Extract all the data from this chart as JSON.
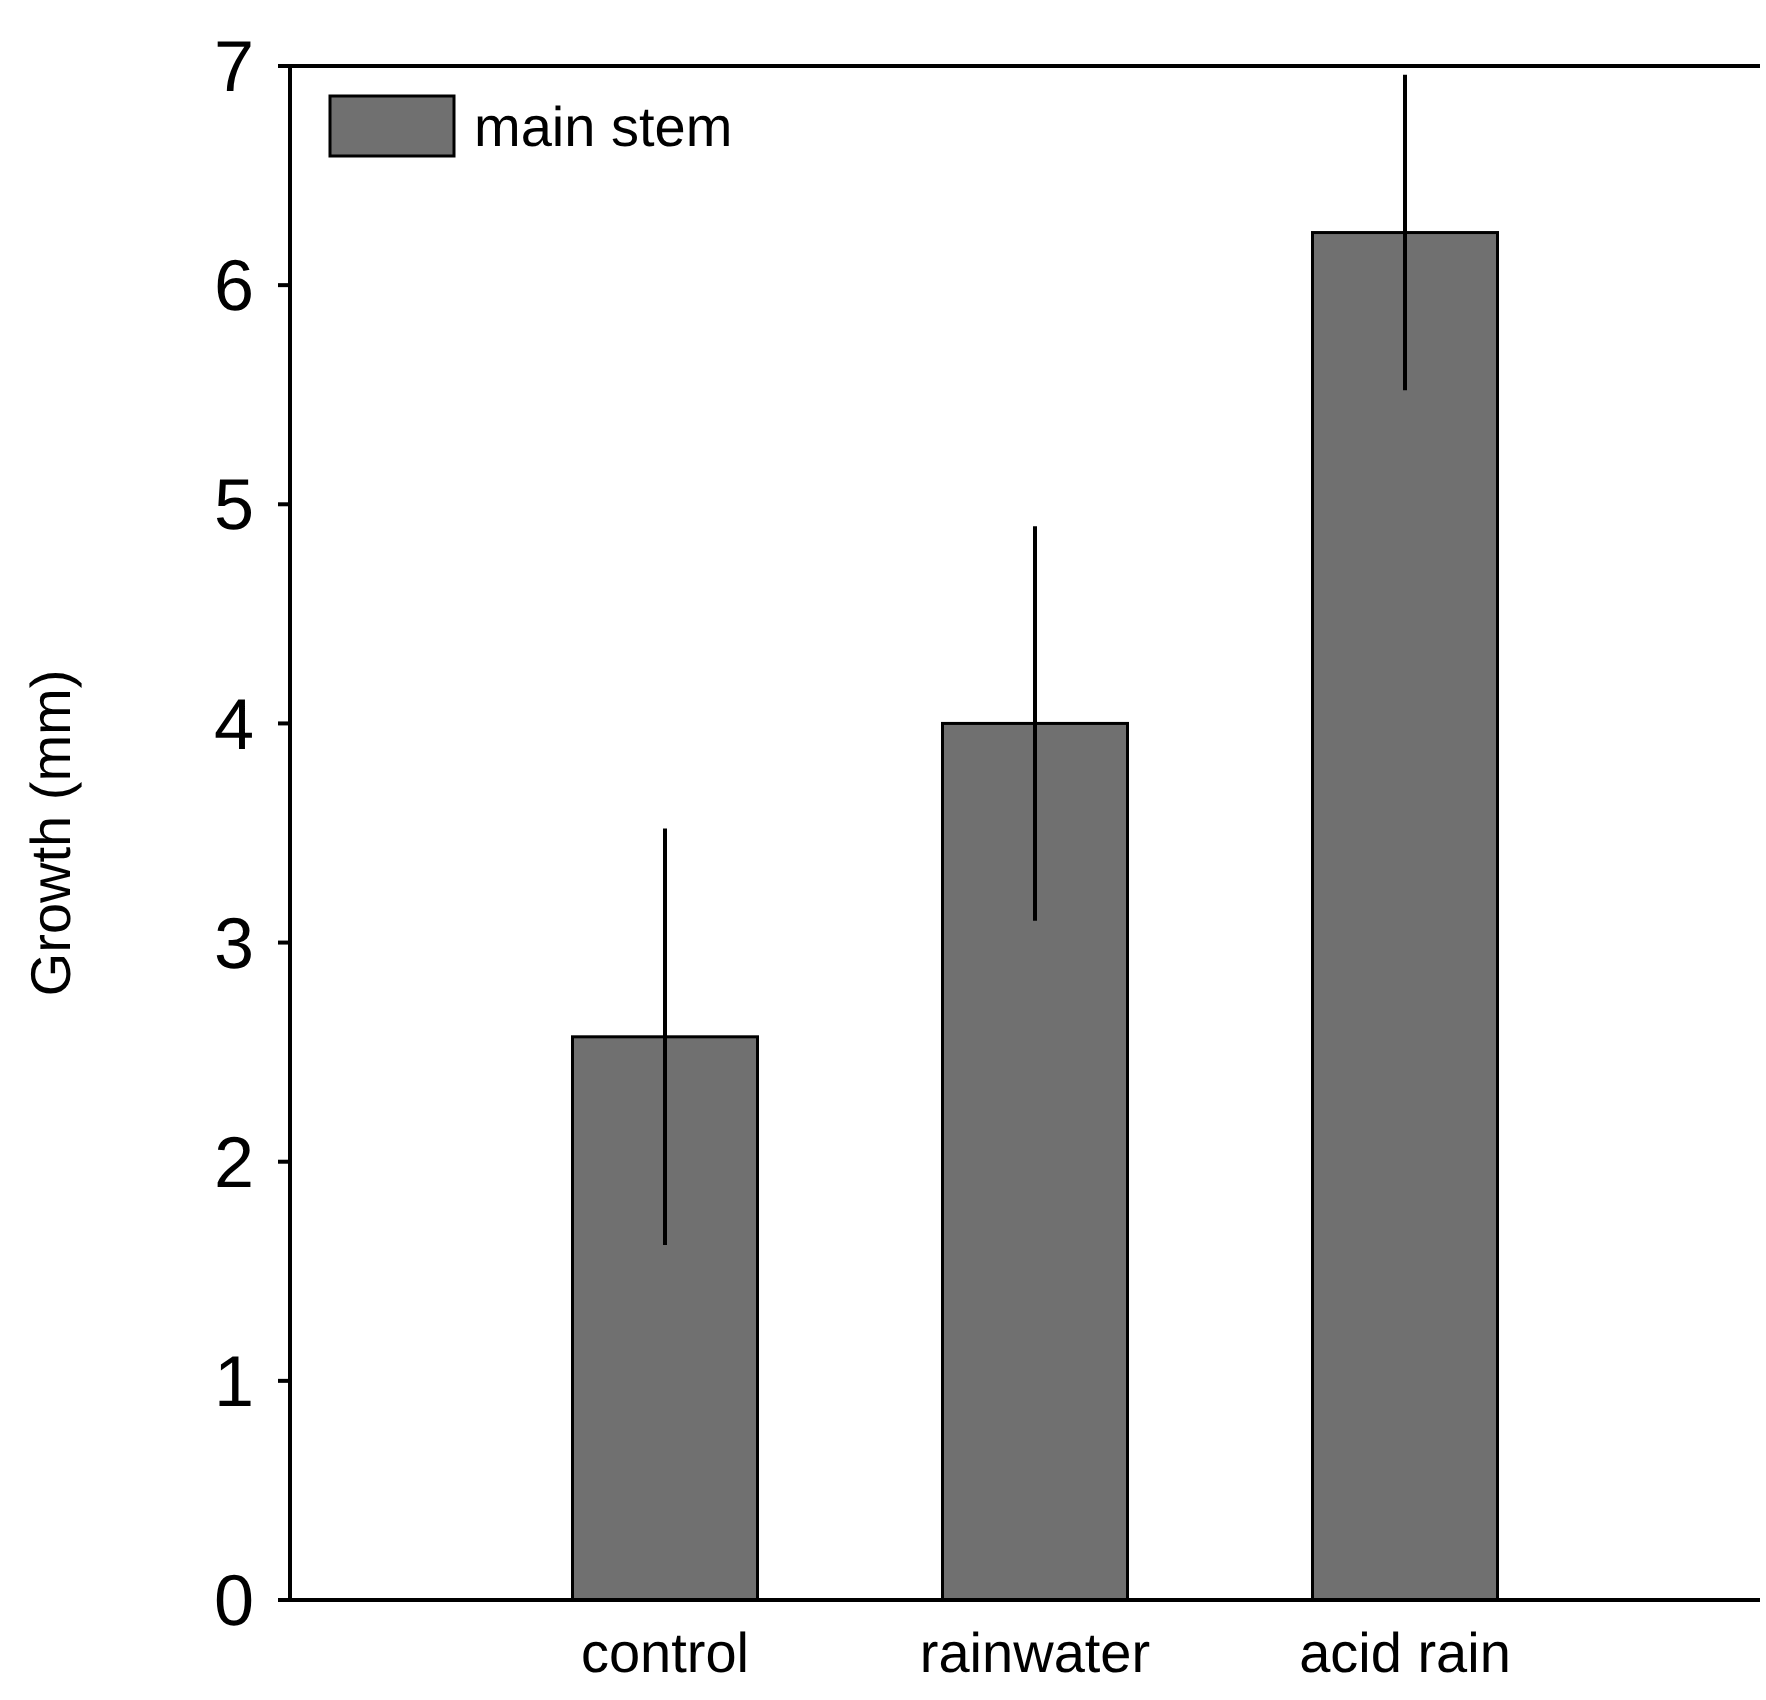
{
  "chart_data": {
    "type": "bar",
    "ylabel": "Growth (mm)",
    "categories": [
      "control",
      "rainwater",
      "acid rain"
    ],
    "series": [
      {
        "name": "main stem",
        "color": "#707070",
        "values": [
          2.57,
          4.0,
          6.24
        ],
        "errors": [
          0.95,
          0.9,
          0.72
        ]
      }
    ],
    "ylim": [
      0,
      7
    ],
    "yticks": [
      0,
      1,
      2,
      3,
      4,
      5,
      6,
      7
    ],
    "grid": false,
    "legend": "top left"
  }
}
